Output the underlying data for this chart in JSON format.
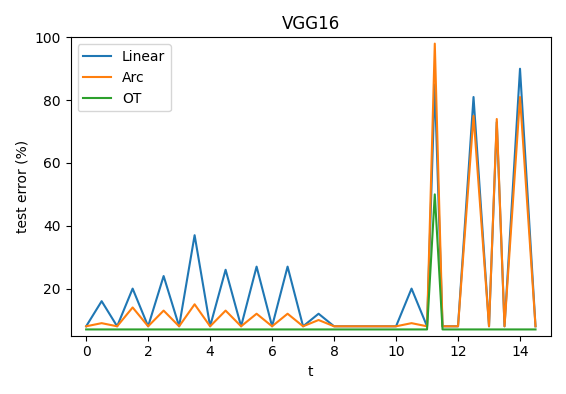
{
  "title": "VGG16",
  "xlabel": "t",
  "ylabel": "test error (%)",
  "xlim": [
    -0.5,
    15.0
  ],
  "ylim": [
    5,
    100
  ],
  "colors": {
    "Linear": "#1f77b4",
    "Arc": "#ff7f0e",
    "OT": "#2ca02c"
  },
  "t_linear": [
    0,
    0.5,
    1.0,
    1.5,
    2.0,
    2.5,
    3.0,
    3.5,
    4.0,
    4.5,
    5.0,
    5.5,
    6.0,
    6.5,
    7.0,
    7.5,
    8.0,
    8.5,
    9.0,
    9.5,
    10.0,
    10.5,
    11.0,
    11.25,
    11.5,
    12.0,
    12.5,
    13.0,
    13.25,
    13.5,
    14.0,
    14.5
  ],
  "v_linear": [
    8,
    16,
    8,
    20,
    8,
    24,
    8,
    37,
    8,
    26,
    8,
    27,
    8,
    27,
    8,
    12,
    8,
    8,
    8,
    8,
    8,
    20,
    8,
    85,
    8,
    8,
    81,
    8,
    73,
    8,
    90,
    8
  ],
  "t_arc": [
    0,
    0.5,
    1.0,
    1.5,
    2.0,
    2.5,
    3.0,
    3.5,
    4.0,
    4.5,
    5.0,
    5.5,
    6.0,
    6.5,
    7.0,
    7.5,
    8.0,
    8.5,
    9.0,
    9.5,
    10.0,
    10.5,
    11.0,
    11.25,
    11.5,
    12.0,
    12.5,
    13.0,
    13.25,
    13.5,
    14.0,
    14.5
  ],
  "v_arc": [
    8,
    9,
    8,
    14,
    8,
    13,
    8,
    15,
    8,
    13,
    8,
    12,
    8,
    12,
    8,
    10,
    8,
    8,
    8,
    8,
    8,
    9,
    8,
    98,
    8,
    8,
    75,
    8,
    74,
    8,
    81,
    8
  ],
  "t_ot": [
    0,
    0.5,
    1.0,
    1.5,
    2.0,
    2.5,
    3.0,
    3.5,
    4.0,
    4.5,
    5.0,
    5.5,
    6.0,
    6.5,
    7.0,
    7.5,
    8.0,
    8.5,
    9.0,
    9.5,
    10.0,
    10.5,
    11.0,
    11.25,
    11.5,
    12.0,
    12.5,
    13.0,
    13.25,
    13.5,
    14.0,
    14.5
  ],
  "v_ot": [
    7,
    7,
    7,
    7,
    7,
    7,
    7,
    7,
    7,
    7,
    7,
    7,
    7,
    7,
    7,
    7,
    7,
    7,
    7,
    7,
    7,
    7,
    7,
    50,
    7,
    7,
    7,
    7,
    7,
    7,
    7,
    7
  ]
}
